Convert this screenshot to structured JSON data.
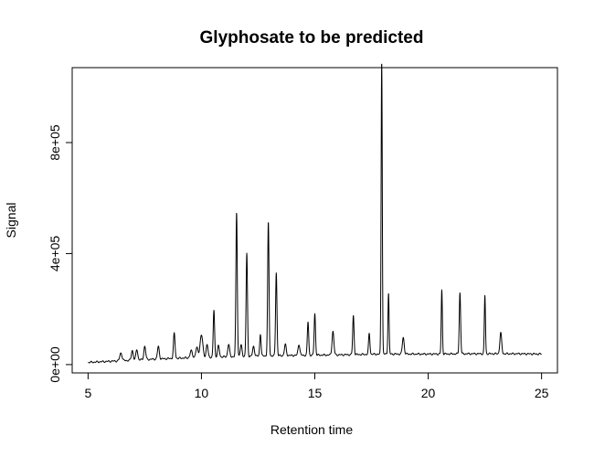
{
  "chart_data": {
    "type": "line",
    "title": "Glyphosate to be predicted",
    "xlabel": "Retention time",
    "ylabel": "Signal",
    "xlim": [
      4.3,
      25.7
    ],
    "ylim": [
      -30000,
      1070000
    ],
    "x_ticks": [
      5,
      10,
      15,
      20,
      25
    ],
    "x_tick_labels": [
      "5",
      "10",
      "15",
      "20",
      "25"
    ],
    "y_ticks": [
      0,
      400000,
      800000
    ],
    "y_tick_labels": [
      "0e+00",
      "4e+05",
      "8e+05"
    ],
    "grid": false,
    "legend": "none",
    "line_color": "#000000",
    "series": [
      {
        "baseline": [
          [
            5.0,
            8000
          ],
          [
            6.0,
            12000
          ],
          [
            8.0,
            20000
          ],
          [
            10.0,
            26000
          ],
          [
            12.0,
            30000
          ],
          [
            14.0,
            33000
          ],
          [
            16.0,
            35000
          ],
          [
            18.0,
            38000
          ],
          [
            20.0,
            38000
          ],
          [
            22.0,
            39000
          ],
          [
            24.0,
            39000
          ],
          [
            25.0,
            38000
          ]
        ],
        "peaks": [
          {
            "rt": 6.45,
            "height": 28000,
            "width": 0.05
          },
          {
            "rt": 6.95,
            "height": 35000,
            "width": 0.04
          },
          {
            "rt": 7.15,
            "height": 38000,
            "width": 0.04
          },
          {
            "rt": 7.5,
            "height": 48000,
            "width": 0.04
          },
          {
            "rt": 8.1,
            "height": 45000,
            "width": 0.04
          },
          {
            "rt": 8.8,
            "height": 90000,
            "width": 0.035
          },
          {
            "rt": 9.55,
            "height": 25000,
            "width": 0.05
          },
          {
            "rt": 9.8,
            "height": 35000,
            "width": 0.05
          },
          {
            "rt": 10.0,
            "height": 80000,
            "width": 0.06
          },
          {
            "rt": 10.25,
            "height": 45000,
            "width": 0.04
          },
          {
            "rt": 10.55,
            "height": 170000,
            "width": 0.03
          },
          {
            "rt": 10.75,
            "height": 40000,
            "width": 0.04
          },
          {
            "rt": 11.2,
            "height": 45000,
            "width": 0.04
          },
          {
            "rt": 11.55,
            "height": 520000,
            "width": 0.03
          },
          {
            "rt": 11.75,
            "height": 40000,
            "width": 0.04
          },
          {
            "rt": 12.0,
            "height": 370000,
            "width": 0.03
          },
          {
            "rt": 12.3,
            "height": 35000,
            "width": 0.04
          },
          {
            "rt": 12.6,
            "height": 80000,
            "width": 0.03
          },
          {
            "rt": 12.95,
            "height": 480000,
            "width": 0.03
          },
          {
            "rt": 13.3,
            "height": 300000,
            "width": 0.03
          },
          {
            "rt": 13.7,
            "height": 40000,
            "width": 0.04
          },
          {
            "rt": 14.3,
            "height": 40000,
            "width": 0.04
          },
          {
            "rt": 14.7,
            "height": 120000,
            "width": 0.03
          },
          {
            "rt": 15.0,
            "height": 150000,
            "width": 0.03
          },
          {
            "rt": 15.8,
            "height": 85000,
            "width": 0.04
          },
          {
            "rt": 16.7,
            "height": 140000,
            "width": 0.03
          },
          {
            "rt": 17.4,
            "height": 75000,
            "width": 0.03
          },
          {
            "rt": 17.95,
            "height": 1060000,
            "width": 0.025
          },
          {
            "rt": 18.25,
            "height": 220000,
            "width": 0.025
          },
          {
            "rt": 18.9,
            "height": 60000,
            "width": 0.04
          },
          {
            "rt": 20.6,
            "height": 230000,
            "width": 0.025
          },
          {
            "rt": 21.4,
            "height": 220000,
            "width": 0.03
          },
          {
            "rt": 22.5,
            "height": 210000,
            "width": 0.025
          },
          {
            "rt": 23.2,
            "height": 75000,
            "width": 0.04
          }
        ]
      }
    ]
  }
}
